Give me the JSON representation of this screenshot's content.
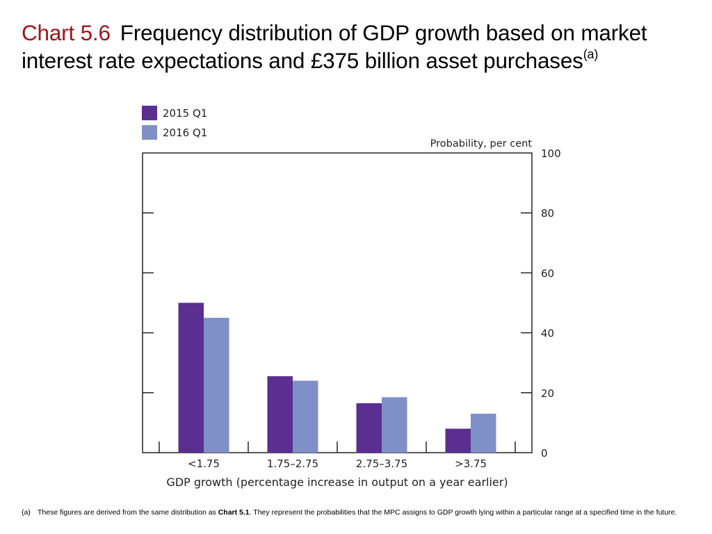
{
  "title": {
    "number": "Chart 5.6",
    "text": "Frequency distribution of GDP growth based on market interest rate expectations and £375 billion asset purchases",
    "superscript": "(a)"
  },
  "chart_data": {
    "type": "bar",
    "categories": [
      "<1.75",
      "1.75–2.75",
      "2.75–3.75",
      ">3.75"
    ],
    "series": [
      {
        "name": "2015 Q1",
        "color": "#5b2e91",
        "values": [
          50,
          25.5,
          16.5,
          8
        ]
      },
      {
        "name": "2016 Q1",
        "color": "#7f90c8",
        "values": [
          45,
          24,
          18.5,
          13
        ]
      }
    ],
    "xlabel": "GDP growth (percentage increase in output on a year earlier)",
    "ylabel": "Probability, per cent",
    "ylim": [
      0,
      100
    ],
    "yticks": [
      "0",
      "20",
      "40",
      "60",
      "80",
      "100"
    ],
    "ytick_values": [
      0,
      20,
      40,
      60,
      80,
      100
    ],
    "legend_position": "top-left",
    "grid": false
  },
  "footnote": {
    "marker": "(a)",
    "text_before": "These figures are derived from the same distribution as ",
    "bold_ref": "Chart 5.1",
    "text_after": ".  They represent the probabilities that the MPC assigns to GDP growth lying within a particular range at a specified time in the future."
  }
}
